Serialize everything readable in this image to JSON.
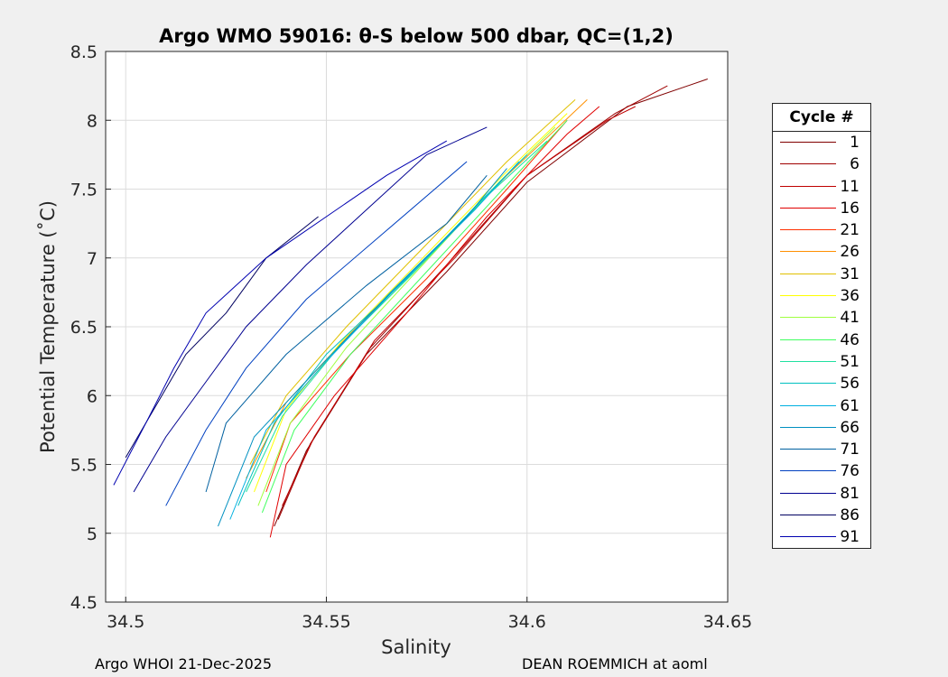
{
  "chart_data": {
    "type": "line",
    "title": "Argo WMO 59016: θ-S below 500 dbar,  QC=(1,2)",
    "xlabel": "Salinity",
    "ylabel": "Potential Temperature (˚C)",
    "xlim": [
      34.495,
      34.65
    ],
    "ylim": [
      4.5,
      8.5
    ],
    "x_ticks": [
      "34.5",
      "34.55",
      "34.6",
      "34.65"
    ],
    "y_ticks": [
      "4.5",
      "5",
      "5.5",
      "6",
      "6.5",
      "7",
      "7.5",
      "8",
      "8.5"
    ],
    "grid": true,
    "legend": {
      "title": "Cycle #",
      "entries": [
        "1",
        "6",
        "11",
        "16",
        "21",
        "26",
        "31",
        "36",
        "41",
        "46",
        "51",
        "56",
        "61",
        "66",
        "71",
        "76",
        "81",
        "86",
        "91"
      ],
      "colors": [
        "#800000",
        "#a00000",
        "#c00000",
        "#e00000",
        "#ff3000",
        "#ff9000",
        "#e0c000",
        "#ffff00",
        "#a0ff40",
        "#40ff60",
        "#20e0a0",
        "#00c0c0",
        "#00b0e0",
        "#0090c0",
        "#0060a0",
        "#0040c0",
        "#000090",
        "#000060",
        "#0000b0"
      ],
      "placement": "outside-right"
    },
    "series": [
      {
        "name": "1",
        "color": "#800000",
        "points": [
          [
            34.537,
            5.05
          ],
          [
            34.545,
            5.6
          ],
          [
            34.56,
            6.3
          ],
          [
            34.58,
            6.9
          ],
          [
            34.6,
            7.55
          ],
          [
            34.625,
            8.1
          ],
          [
            34.645,
            8.3
          ]
        ]
      },
      {
        "name": "6",
        "color": "#a00000",
        "points": [
          [
            34.538,
            5.1
          ],
          [
            34.546,
            5.65
          ],
          [
            34.561,
            6.35
          ],
          [
            34.58,
            6.95
          ],
          [
            34.6,
            7.6
          ],
          [
            34.622,
            8.05
          ],
          [
            34.635,
            8.25
          ]
        ]
      },
      {
        "name": "11",
        "color": "#c00000",
        "points": [
          [
            34.539,
            5.2
          ],
          [
            34.547,
            5.7
          ],
          [
            34.562,
            6.4
          ],
          [
            34.582,
            7.0
          ],
          [
            34.6,
            7.6
          ],
          [
            34.62,
            8.0
          ],
          [
            34.627,
            8.1
          ]
        ]
      },
      {
        "name": "16",
        "color": "#e00000",
        "points": [
          [
            34.536,
            4.97
          ],
          [
            34.54,
            5.5
          ],
          [
            34.552,
            6.0
          ],
          [
            34.57,
            6.6
          ],
          [
            34.59,
            7.3
          ],
          [
            34.61,
            7.9
          ],
          [
            34.618,
            8.1
          ]
        ]
      },
      {
        "name": "21",
        "color": "#ff3000",
        "points": [
          [
            34.535,
            5.3
          ],
          [
            34.541,
            5.8
          ],
          [
            34.556,
            6.3
          ],
          [
            34.575,
            6.85
          ],
          [
            34.595,
            7.5
          ],
          [
            34.61,
            8.0
          ]
        ]
      },
      {
        "name": "26",
        "color": "#ff9000",
        "points": [
          [
            34.53,
            5.4
          ],
          [
            34.54,
            5.95
          ],
          [
            34.556,
            6.45
          ],
          [
            34.575,
            7.0
          ],
          [
            34.595,
            7.6
          ],
          [
            34.615,
            8.15
          ]
        ]
      },
      {
        "name": "31",
        "color": "#e0c000",
        "points": [
          [
            34.531,
            5.5
          ],
          [
            34.54,
            6.0
          ],
          [
            34.555,
            6.5
          ],
          [
            34.575,
            7.1
          ],
          [
            34.595,
            7.7
          ],
          [
            34.612,
            8.15
          ]
        ]
      },
      {
        "name": "36",
        "color": "#ffff00",
        "points": [
          [
            34.532,
            5.3
          ],
          [
            34.54,
            5.9
          ],
          [
            34.554,
            6.4
          ],
          [
            34.574,
            7.0
          ],
          [
            34.594,
            7.6
          ],
          [
            34.61,
            8.05
          ]
        ]
      },
      {
        "name": "41",
        "color": "#a0ff40",
        "points": [
          [
            34.533,
            5.2
          ],
          [
            34.541,
            5.8
          ],
          [
            34.555,
            6.35
          ],
          [
            34.574,
            6.95
          ],
          [
            34.593,
            7.55
          ],
          [
            34.607,
            7.95
          ]
        ]
      },
      {
        "name": "46",
        "color": "#40ff60",
        "points": [
          [
            34.534,
            5.15
          ],
          [
            34.542,
            5.75
          ],
          [
            34.556,
            6.3
          ],
          [
            34.575,
            6.9
          ],
          [
            34.594,
            7.5
          ],
          [
            34.61,
            8.0
          ]
        ]
      },
      {
        "name": "51",
        "color": "#20e0a0",
        "points": [
          [
            34.53,
            5.3
          ],
          [
            34.539,
            5.85
          ],
          [
            34.553,
            6.35
          ],
          [
            34.572,
            6.9
          ],
          [
            34.59,
            7.45
          ],
          [
            34.605,
            7.85
          ]
        ]
      },
      {
        "name": "56",
        "color": "#00c0c0",
        "points": [
          [
            34.528,
            5.2
          ],
          [
            34.537,
            5.8
          ],
          [
            34.55,
            6.3
          ],
          [
            34.57,
            6.85
          ],
          [
            34.588,
            7.4
          ],
          [
            34.6,
            7.75
          ]
        ]
      },
      {
        "name": "61",
        "color": "#00b0e0",
        "points": [
          [
            34.526,
            5.1
          ],
          [
            34.535,
            5.75
          ],
          [
            34.55,
            6.25
          ],
          [
            34.568,
            6.8
          ],
          [
            34.587,
            7.35
          ],
          [
            34.598,
            7.7
          ]
        ]
      },
      {
        "name": "66",
        "color": "#0090c0",
        "points": [
          [
            34.523,
            5.05
          ],
          [
            34.532,
            5.7
          ],
          [
            34.548,
            6.2
          ],
          [
            34.566,
            6.75
          ],
          [
            34.585,
            7.3
          ],
          [
            34.595,
            7.65
          ]
        ]
      },
      {
        "name": "71",
        "color": "#0060a0",
        "points": [
          [
            34.52,
            5.3
          ],
          [
            34.525,
            5.8
          ],
          [
            34.54,
            6.3
          ],
          [
            34.56,
            6.8
          ],
          [
            34.58,
            7.25
          ],
          [
            34.59,
            7.6
          ]
        ]
      },
      {
        "name": "76",
        "color": "#0040c0",
        "points": [
          [
            34.51,
            5.2
          ],
          [
            34.52,
            5.75
          ],
          [
            34.53,
            6.2
          ],
          [
            34.545,
            6.7
          ],
          [
            34.565,
            7.2
          ],
          [
            34.585,
            7.7
          ]
        ]
      },
      {
        "name": "81",
        "color": "#000090",
        "points": [
          [
            34.502,
            5.3
          ],
          [
            34.51,
            5.7
          ],
          [
            34.52,
            6.1
          ],
          [
            34.53,
            6.5
          ],
          [
            34.545,
            6.95
          ],
          [
            34.56,
            7.35
          ],
          [
            34.575,
            7.75
          ],
          [
            34.59,
            7.95
          ]
        ]
      },
      {
        "name": "86",
        "color": "#000060",
        "points": [
          [
            34.5,
            5.55
          ],
          [
            34.508,
            5.95
          ],
          [
            34.515,
            6.3
          ],
          [
            34.525,
            6.6
          ],
          [
            34.535,
            7.0
          ],
          [
            34.548,
            7.3
          ]
        ]
      },
      {
        "name": "91",
        "color": "#0000b0",
        "points": [
          [
            34.497,
            5.35
          ],
          [
            34.505,
            5.8
          ],
          [
            34.512,
            6.2
          ],
          [
            34.52,
            6.6
          ],
          [
            34.535,
            7.0
          ],
          [
            34.55,
            7.3
          ],
          [
            34.565,
            7.6
          ],
          [
            34.58,
            7.85
          ]
        ]
      }
    ]
  },
  "footer": {
    "left": "Argo WHOI 21-Dec-2025",
    "right": "DEAN ROEMMICH at aoml"
  }
}
